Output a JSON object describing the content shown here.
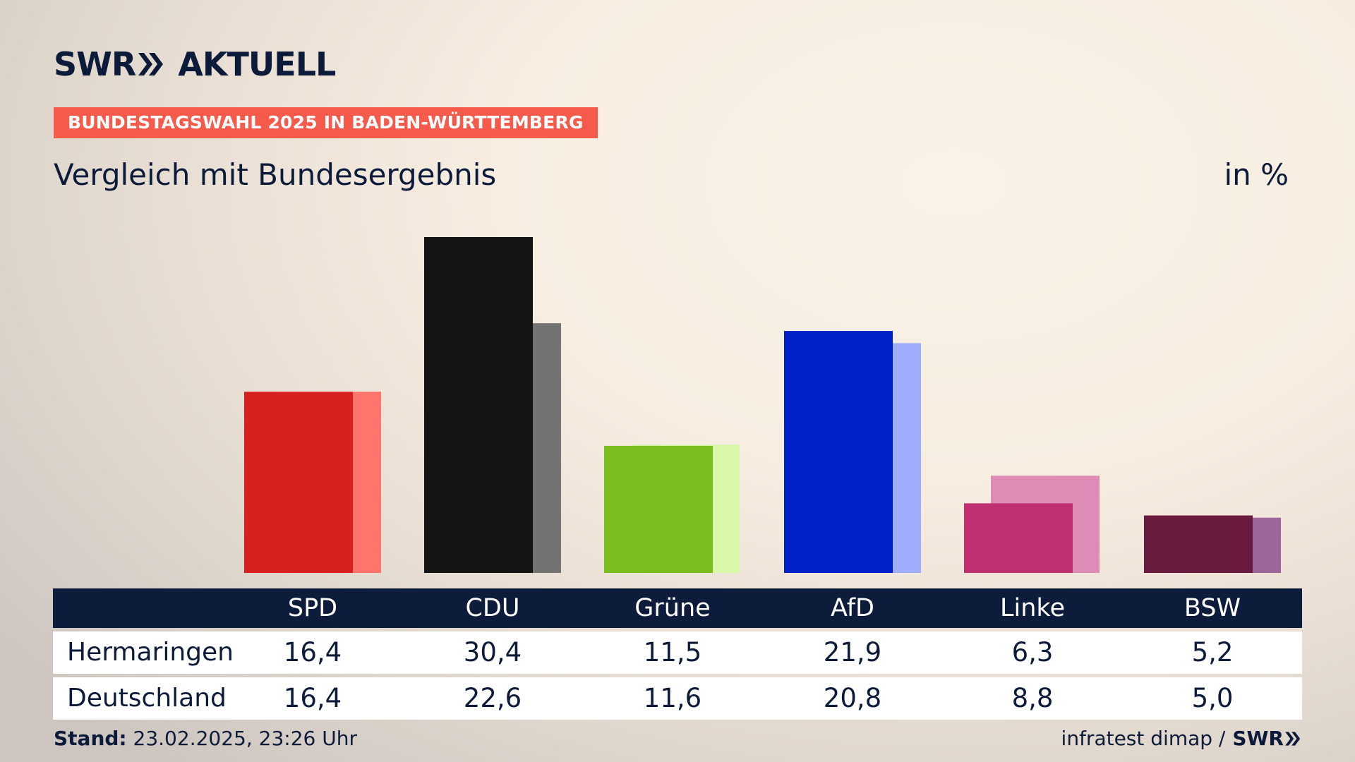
{
  "header": {
    "logo_left": "SWR",
    "logo_right": "AKTUELL",
    "banner": "BUNDESTAGSWAHL 2025 IN BADEN-WÜRTTEMBERG",
    "subtitle": "Vergleich mit Bundesergebnis",
    "unit": "in %"
  },
  "chart_data": {
    "type": "bar",
    "title": "Vergleich mit Bundesergebnis",
    "unit": "in %",
    "categories": [
      "SPD",
      "CDU",
      "Grüne",
      "AfD",
      "Linke",
      "BSW"
    ],
    "series": [
      {
        "name": "Hermaringen",
        "values": [
          16.4,
          30.4,
          11.5,
          21.9,
          6.3,
          5.2
        ]
      },
      {
        "name": "Deutschland",
        "values": [
          16.4,
          22.6,
          11.6,
          20.8,
          8.8,
          5.0
        ]
      }
    ],
    "ylim": [
      0,
      30.4
    ],
    "grid": false,
    "legend": "table-below",
    "colors_primary": [
      "#d72020",
      "#141414",
      "#79bd1e",
      "#0020c8",
      "#bf3072",
      "#6b1a3f"
    ],
    "colors_secondary": [
      "#ff756e",
      "#737373",
      "#d9f7a8",
      "#a0adfc",
      "#de8bb6",
      "#9c659c"
    ]
  },
  "table": {
    "rows": [
      {
        "label": "Hermaringen",
        "values": [
          "16,4",
          "30,4",
          "11,5",
          "21,9",
          "6,3",
          "5,2"
        ]
      },
      {
        "label": "Deutschland",
        "values": [
          "16,4",
          "22,6",
          "11,6",
          "20,8",
          "8,8",
          "5,0"
        ]
      }
    ]
  },
  "footer": {
    "stand_label": "Stand:",
    "stand_value": "23.02.2025, 23:26 Uhr",
    "source": "infratest dimap /",
    "source_brand": "SWR"
  }
}
